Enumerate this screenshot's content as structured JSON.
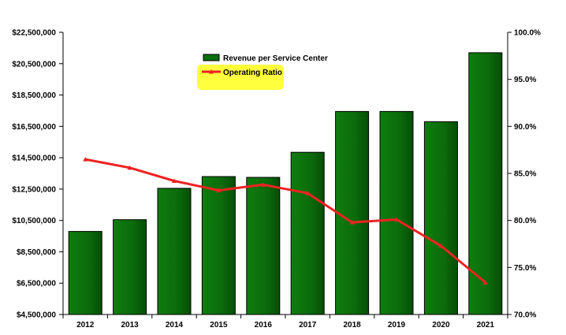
{
  "chart_data": {
    "type": "bar",
    "categories": [
      "2012",
      "2013",
      "2014",
      "2015",
      "2016",
      "2017",
      "2018",
      "2019",
      "2020",
      "2021"
    ],
    "series": [
      {
        "name": "Revenue per Service Center",
        "type": "bar",
        "axis": "left",
        "color": "#0b6e0b",
        "values": [
          9800000,
          10550000,
          12550000,
          13300000,
          13250000,
          14850000,
          17450000,
          17450000,
          16800000,
          21200000
        ]
      },
      {
        "name": "Operating Ratio",
        "type": "line",
        "axis": "right",
        "color": "#ee2222",
        "values": [
          86.5,
          85.6,
          84.2,
          83.2,
          83.8,
          82.9,
          79.8,
          80.1,
          77.3,
          73.4
        ]
      }
    ],
    "y_left": {
      "lim": [
        4500000,
        22500000
      ],
      "ticks": [
        4500000,
        6500000,
        8500000,
        10500000,
        12500000,
        14500000,
        16500000,
        18500000,
        20500000,
        22500000
      ],
      "tick_labels": [
        "$4,500,000",
        "$6,500,000",
        "$8,500,000",
        "$10,500,000",
        "$12,500,000",
        "$14,500,000",
        "$16,500,000",
        "$18,500,000",
        "$20,500,000",
        "$22,500,000"
      ]
    },
    "y_right": {
      "lim": [
        70,
        100
      ],
      "ticks": [
        70,
        75,
        80,
        85,
        90,
        95,
        100
      ],
      "tick_labels": [
        "70.0%",
        "75.0%",
        "80.0%",
        "85.0%",
        "90.0%",
        "95.0%",
        "100.0%"
      ]
    },
    "grid": false,
    "legend": {
      "position": "top-center",
      "highlight_color": "#ffff33",
      "highlighted_entry": "Operating Ratio"
    },
    "title": "",
    "xlabel": "",
    "ylabel": ""
  }
}
